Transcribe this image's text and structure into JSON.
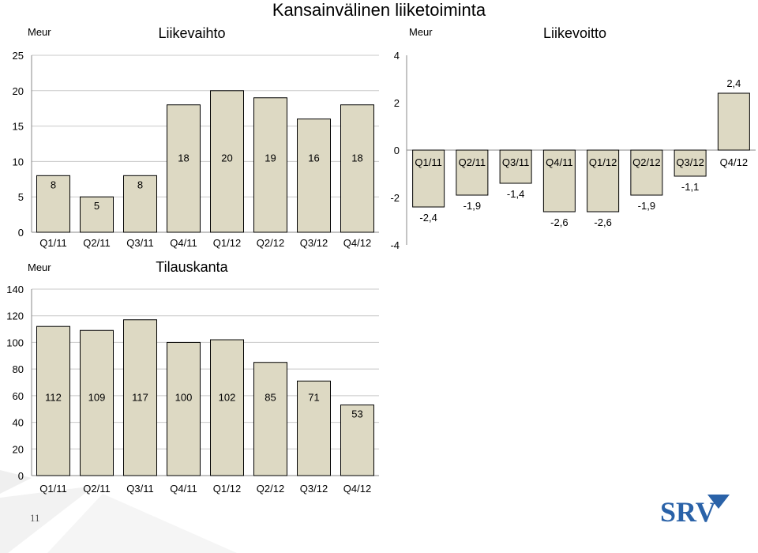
{
  "page_title": "Kansainvälinen liiketoiminta",
  "slide_number": "11",
  "logo_text": "SRV",
  "colors": {
    "bar_fill": "#ddd9c3",
    "bar_stroke": "#000000",
    "grid": "#c8c8c8",
    "logo": "#2a62a8"
  },
  "chart_data": [
    {
      "type": "bar",
      "title": "Liikevaihto",
      "ylabel": "Meur",
      "categories": [
        "Q1/11",
        "Q2/11",
        "Q3/11",
        "Q4/11",
        "Q1/12",
        "Q2/12",
        "Q3/12",
        "Q4/12"
      ],
      "values": [
        8,
        5,
        8,
        18,
        20,
        19,
        16,
        18
      ],
      "ylim": [
        0,
        25
      ],
      "yticks": [
        "0",
        "5",
        "10",
        "15",
        "20",
        "25"
      ],
      "grid": true
    },
    {
      "type": "bar",
      "title": "Liikevoitto",
      "ylabel": "Meur",
      "categories": [
        "Q1/11",
        "Q2/11",
        "Q3/11",
        "Q4/11",
        "Q1/12",
        "Q2/12",
        "Q3/12",
        "Q4/12"
      ],
      "values": [
        -2.4,
        -1.9,
        -1.4,
        -2.6,
        -2.6,
        -1.9,
        -1.1,
        2.4
      ],
      "value_labels": [
        "-2,4",
        "-1,9",
        "-1,4",
        "-2,6",
        "-2,6",
        "-1,9",
        "-1,1",
        "2,4"
      ],
      "ylim": [
        -4,
        4
      ],
      "yticks": [
        "-4",
        "-2",
        "0",
        "2",
        "4"
      ],
      "grid": false
    },
    {
      "type": "bar",
      "title": "Tilauskanta",
      "ylabel": "Meur",
      "categories": [
        "Q1/11",
        "Q2/11",
        "Q3/11",
        "Q4/11",
        "Q1/12",
        "Q2/12",
        "Q3/12",
        "Q4/12"
      ],
      "values": [
        112,
        109,
        117,
        100,
        102,
        85,
        71,
        53
      ],
      "ylim": [
        0,
        140
      ],
      "yticks": [
        "0",
        "20",
        "40",
        "60",
        "80",
        "100",
        "120",
        "140"
      ],
      "grid": true
    }
  ]
}
